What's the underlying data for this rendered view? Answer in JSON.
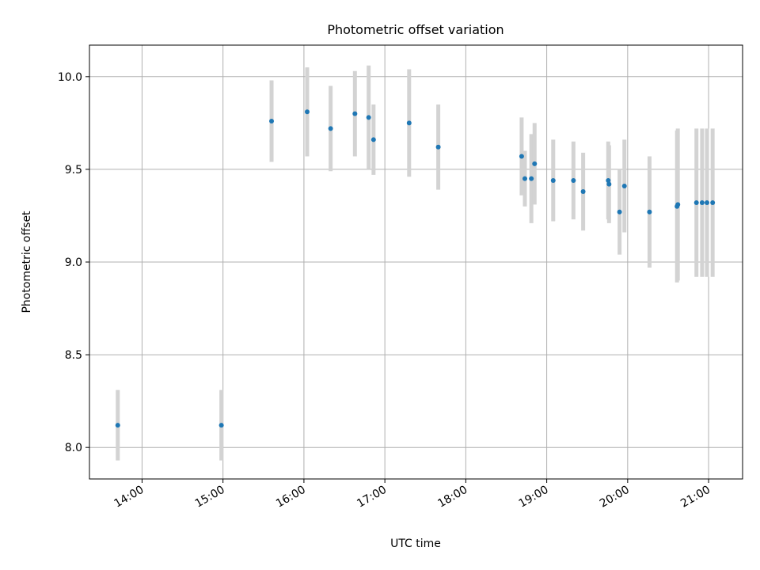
{
  "chart_data": {
    "type": "scatter",
    "title": "Photometric offset variation",
    "xlabel": "UTC time",
    "ylabel": "Photometric offset",
    "xlim_hours": [
      13.35,
      21.42
    ],
    "ylim": [
      7.83,
      10.17
    ],
    "grid": true,
    "x_ticks": [
      {
        "value": 14,
        "label": "14:00"
      },
      {
        "value": 15,
        "label": "15:00"
      },
      {
        "value": 16,
        "label": "16:00"
      },
      {
        "value": 17,
        "label": "17:00"
      },
      {
        "value": 18,
        "label": "18:00"
      },
      {
        "value": 19,
        "label": "19:00"
      },
      {
        "value": 20,
        "label": "20:00"
      },
      {
        "value": 21,
        "label": "21:00"
      }
    ],
    "y_ticks": [
      {
        "value": 8.0,
        "label": "8.0"
      },
      {
        "value": 8.5,
        "label": "8.5"
      },
      {
        "value": 9.0,
        "label": "9.0"
      },
      {
        "value": 9.5,
        "label": "9.5"
      },
      {
        "value": 10.0,
        "label": "10.0"
      }
    ],
    "marker_color": "#1f77b4",
    "errorbar_color": "#d3d3d3",
    "points": [
      {
        "x": 13.7,
        "y": 8.12,
        "err": 0.19
      },
      {
        "x": 14.98,
        "y": 8.12,
        "err": 0.19
      },
      {
        "x": 15.6,
        "y": 9.76,
        "err": 0.22
      },
      {
        "x": 16.04,
        "y": 9.81,
        "err": 0.24
      },
      {
        "x": 16.33,
        "y": 9.72,
        "err": 0.23
      },
      {
        "x": 16.63,
        "y": 9.8,
        "err": 0.23
      },
      {
        "x": 16.8,
        "y": 9.78,
        "err": 0.28
      },
      {
        "x": 16.86,
        "y": 9.66,
        "err": 0.19
      },
      {
        "x": 17.3,
        "y": 9.75,
        "err": 0.29
      },
      {
        "x": 17.66,
        "y": 9.62,
        "err": 0.23
      },
      {
        "x": 18.69,
        "y": 9.57,
        "err": 0.21
      },
      {
        "x": 18.73,
        "y": 9.45,
        "err": 0.15
      },
      {
        "x": 18.81,
        "y": 9.45,
        "err": 0.24
      },
      {
        "x": 18.85,
        "y": 9.53,
        "err": 0.22
      },
      {
        "x": 19.08,
        "y": 9.44,
        "err": 0.22
      },
      {
        "x": 19.33,
        "y": 9.44,
        "err": 0.21
      },
      {
        "x": 19.45,
        "y": 9.38,
        "err": 0.21
      },
      {
        "x": 19.76,
        "y": 9.44,
        "err": 0.21
      },
      {
        "x": 19.77,
        "y": 9.42,
        "err": 0.21
      },
      {
        "x": 19.9,
        "y": 9.27,
        "err": 0.23
      },
      {
        "x": 19.96,
        "y": 9.41,
        "err": 0.25
      },
      {
        "x": 20.27,
        "y": 9.27,
        "err": 0.3
      },
      {
        "x": 20.61,
        "y": 9.3,
        "err": 0.41
      },
      {
        "x": 20.62,
        "y": 9.31,
        "err": 0.41
      },
      {
        "x": 20.85,
        "y": 9.32,
        "err": 0.4
      },
      {
        "x": 20.92,
        "y": 9.32,
        "err": 0.4
      },
      {
        "x": 20.98,
        "y": 9.32,
        "err": 0.4
      },
      {
        "x": 21.05,
        "y": 9.32,
        "err": 0.4
      }
    ]
  }
}
